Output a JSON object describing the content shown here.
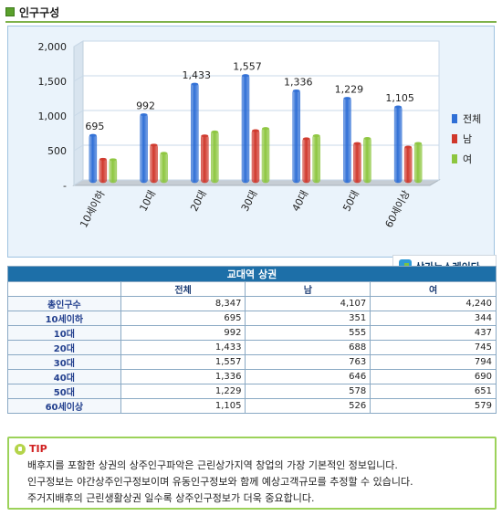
{
  "header": {
    "title": "인구구성"
  },
  "chart_data": {
    "type": "bar",
    "categories": [
      "10세이하",
      "10대",
      "20대",
      "30대",
      "40대",
      "50대",
      "60세이상"
    ],
    "series": [
      {
        "name": "전체",
        "values": [
          695,
          992,
          1433,
          1557,
          1336,
          1229,
          1105
        ],
        "color": "#2f6fd6"
      },
      {
        "name": "남",
        "values": [
          351,
          555,
          688,
          763,
          646,
          578,
          526
        ],
        "color": "#d0382c"
      },
      {
        "name": "여",
        "values": [
          344,
          437,
          745,
          794,
          690,
          651,
          579
        ],
        "color": "#8dc63f"
      }
    ],
    "data_labels": [
      "695",
      "992",
      "1,433",
      "1,557",
      "1,336",
      "1,229",
      "1,105"
    ],
    "y_ticks": [
      {
        "value": 0,
        "label": "-"
      },
      {
        "value": 500,
        "label": "500"
      },
      {
        "value": 1000,
        "label": "1,000"
      },
      {
        "value": 1500,
        "label": "1,500"
      },
      {
        "value": 2000,
        "label": "2,000"
      }
    ],
    "ylim": [
      0,
      2000
    ],
    "grid": true,
    "legend_position": "right"
  },
  "logo": {
    "text": "상가뉴스레이다"
  },
  "table": {
    "caption": "교대역 상권",
    "columns": [
      "",
      "전체",
      "남",
      "여"
    ],
    "rows": [
      {
        "label": "총인구수",
        "values": [
          "8,347",
          "4,107",
          "4,240"
        ]
      },
      {
        "label": "10세이하",
        "values": [
          "695",
          "351",
          "344"
        ]
      },
      {
        "label": "10대",
        "values": [
          "992",
          "555",
          "437"
        ]
      },
      {
        "label": "20대",
        "values": [
          "1,433",
          "688",
          "745"
        ]
      },
      {
        "label": "30대",
        "values": [
          "1,557",
          "763",
          "794"
        ]
      },
      {
        "label": "40대",
        "values": [
          "1,336",
          "646",
          "690"
        ]
      },
      {
        "label": "50대",
        "values": [
          "1,229",
          "578",
          "651"
        ]
      },
      {
        "label": "60세이상",
        "values": [
          "1,105",
          "526",
          "579"
        ]
      }
    ]
  },
  "tip": {
    "label": "TIP",
    "lines": [
      "배후지를 포함한 상권의 상주인구파악은 근린상가지역 창업의 가장 기본적인 정보입니다.",
      "인구정보는 야간상주인구정보이며 유동인구정보와 함께 예상고객규모를 추정할 수 있습니다.",
      "주거지배후의 근린생활상권 일수록 상주인구정보가 더욱 중요합니다."
    ]
  }
}
